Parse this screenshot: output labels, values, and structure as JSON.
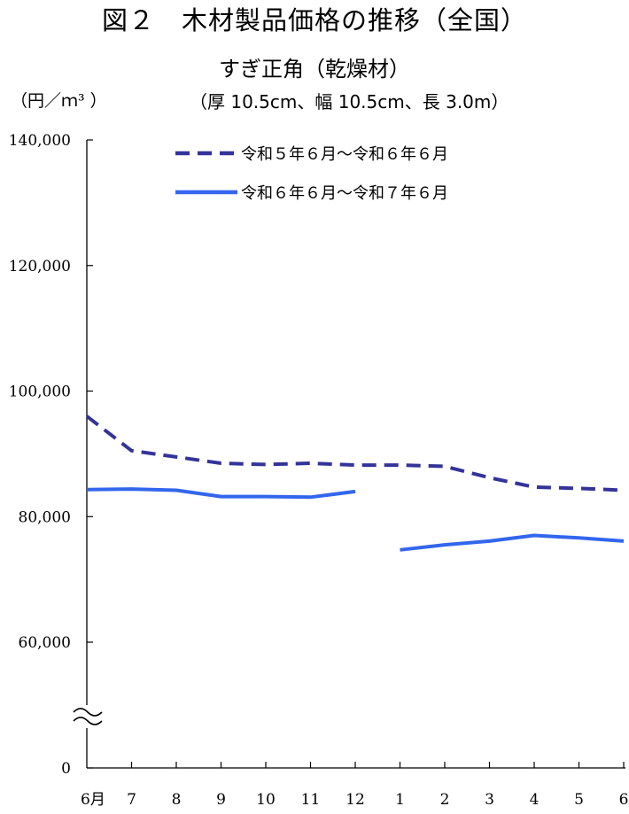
{
  "header": {
    "title": "図２　木材製品価格の推移（全国）",
    "subtitle": "すぎ正角（乾燥材）",
    "unit": "（円／ｍ³ ）",
    "dimensions": "（厚 10.5cm、幅 10.5cm、長 3.0m）"
  },
  "chart_data": {
    "type": "line",
    "title": "図２　木材製品価格の推移（全国）",
    "subtitle": "すぎ正角（乾燥材）",
    "ylabel": "（円／ｍ³ ）",
    "categories": [
      "6月",
      "7",
      "8",
      "9",
      "10",
      "11",
      "12",
      "1",
      "2",
      "3",
      "4",
      "5",
      "6"
    ],
    "ylim": [
      0,
      140000
    ],
    "y_axis_break": [
      0,
      50000
    ],
    "y_ticks": [
      0,
      60000,
      80000,
      100000,
      120000,
      140000
    ],
    "y_tick_labels": [
      "0",
      "60,000",
      "80,000",
      "100,000",
      "120,000",
      "140,000"
    ],
    "grid": false,
    "legend_position": "top",
    "series": [
      {
        "name": "令和５年６月～令和６年６月",
        "color": "#33339a",
        "style": "dashed",
        "values": [
          96000,
          90500,
          89500,
          88500,
          88300,
          88500,
          88200,
          88200,
          88000,
          86200,
          84700,
          84500,
          84200
        ]
      },
      {
        "name": "令和６年６月～令和７年６月",
        "color": "#3366ee",
        "style": "solid",
        "values": [
          84300,
          84400,
          84200,
          83200,
          83200,
          83100,
          84000,
          74700,
          75500,
          76100,
          77000,
          76600,
          76100
        ]
      }
    ]
  }
}
